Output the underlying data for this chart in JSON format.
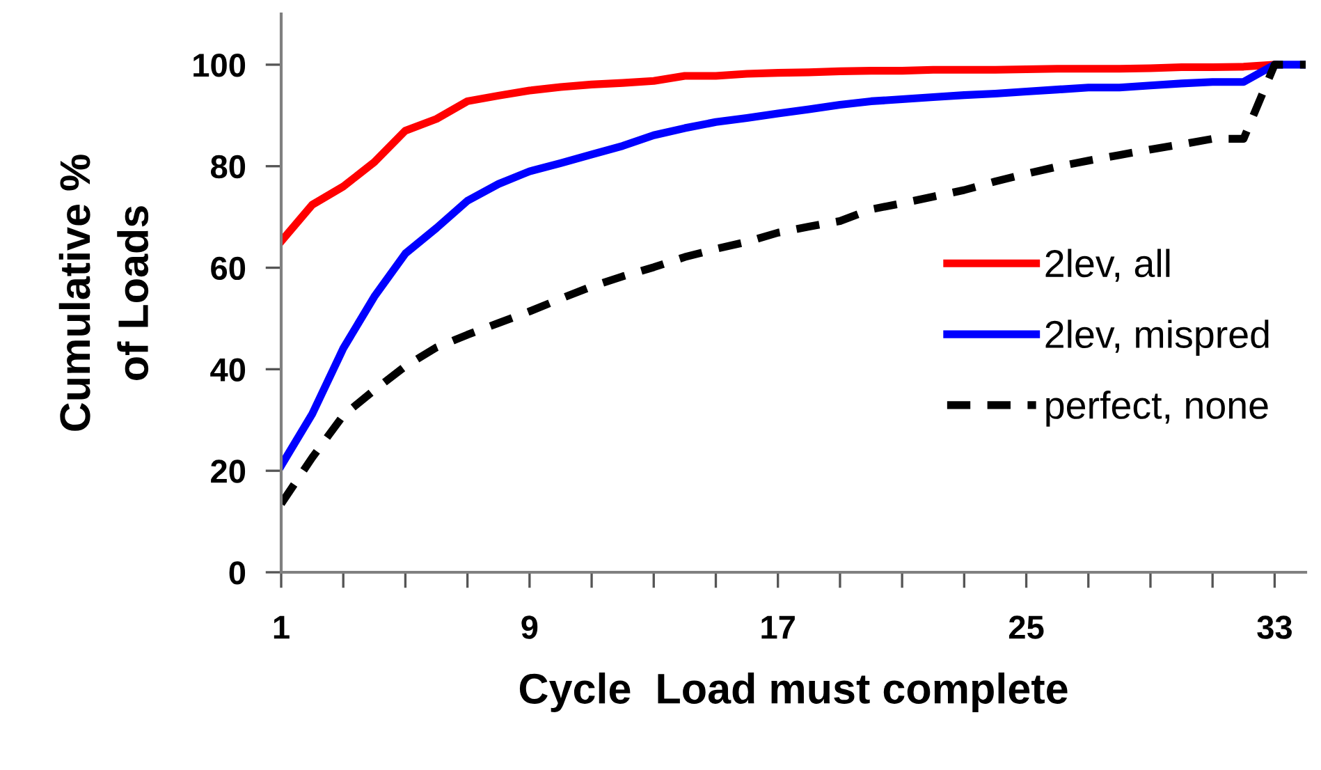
{
  "chart_data": {
    "type": "line",
    "xlabel": "Cycle  Load must complete",
    "ylabel": "Cumulative %\nof Loads",
    "x": [
      1,
      2,
      3,
      4,
      5,
      6,
      7,
      8,
      9,
      10,
      11,
      12,
      13,
      14,
      15,
      16,
      17,
      18,
      19,
      20,
      21,
      22,
      23,
      24,
      25,
      26,
      27,
      28,
      29,
      30,
      31,
      32,
      33,
      34
    ],
    "series": [
      {
        "name": "2lev, all",
        "color": "#ff0000",
        "line_style": "solid",
        "values": [
          65.2,
          72.4,
          76,
          80.8,
          87,
          89.3,
          92.8,
          93.9,
          94.9,
          95.6,
          96.1,
          96.4,
          96.8,
          97.8,
          97.8,
          98.2,
          98.4,
          98.5,
          98.7,
          98.8,
          98.8,
          99,
          99,
          99,
          99.1,
          99.2,
          99.2,
          99.2,
          99.3,
          99.5,
          99.5,
          99.6,
          100,
          null
        ]
      },
      {
        "name": "2lev, mispred",
        "color": "#0000ff",
        "line_style": "solid",
        "values": [
          21,
          31.2,
          44.1,
          54.3,
          62.8,
          67.8,
          73.2,
          76.5,
          79,
          80.6,
          82.3,
          84,
          86.1,
          87.5,
          88.7,
          89.5,
          90.4,
          91.2,
          92.1,
          92.8,
          93.2,
          93.6,
          94,
          94.3,
          94.7,
          95.1,
          95.5,
          95.5,
          95.9,
          96.3,
          96.6,
          96.6,
          100,
          100
        ]
      },
      {
        "name": "perfect, none",
        "color": "#000000",
        "line_style": "dashed",
        "values": [
          13.5,
          22.6,
          30.9,
          35.9,
          40.6,
          44.3,
          46.8,
          49.1,
          51.4,
          53.9,
          56.3,
          58.3,
          60.1,
          62.1,
          63.7,
          65.1,
          66.9,
          68.1,
          69.2,
          71.5,
          72.7,
          74,
          75.3,
          77,
          78.5,
          79.9,
          81.1,
          82.2,
          83.3,
          84.3,
          85.4,
          85.4,
          100,
          100
        ]
      }
    ],
    "xlim": [
      1,
      34
    ],
    "xticks": [
      1,
      {
        "value": 3,
        "label": null
      },
      {
        "value": 5,
        "label": null
      },
      {
        "value": 7,
        "label": null
      },
      9,
      {
        "value": 11,
        "label": null
      },
      {
        "value": 13,
        "label": null
      },
      {
        "value": 15,
        "label": null
      },
      17,
      {
        "value": 19,
        "label": null
      },
      {
        "value": 21,
        "label": null
      },
      {
        "value": 23,
        "label": null
      },
      25,
      {
        "value": 27,
        "label": null
      },
      {
        "value": 29,
        "label": null
      },
      {
        "value": 31,
        "label": null
      },
      33
    ],
    "ylim": [
      0,
      110
    ],
    "yticks": [
      0,
      20,
      40,
      60,
      80,
      100
    ],
    "grid": false,
    "legend": "right",
    "marker": "none"
  }
}
